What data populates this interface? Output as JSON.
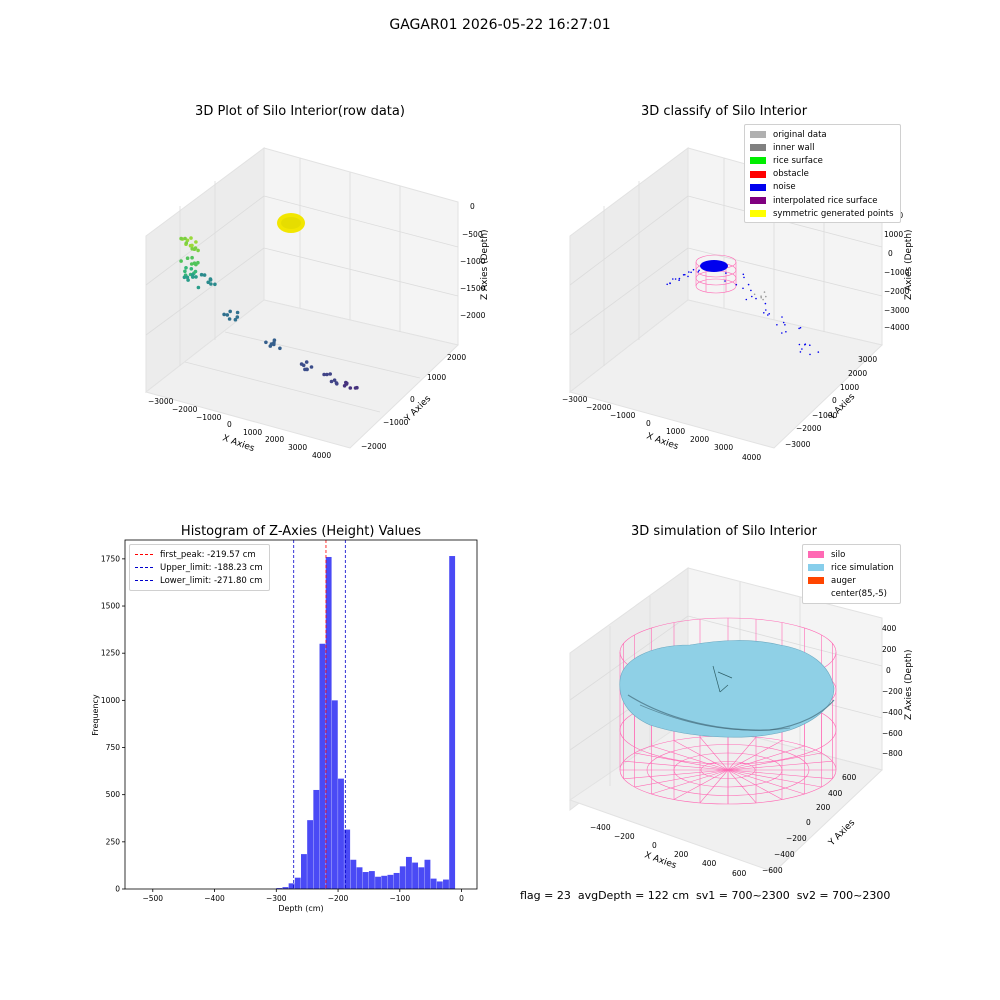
{
  "figure": {
    "suptitle": "GAGAR01 2026-05-22 16:27:01",
    "footer": "flag = 23  avgDepth = 122 cm  sv1 = 700~2300  sv2 = 700~2300"
  },
  "chart_data": [
    {
      "type": "scatter",
      "title": "3D Plot of Silo Interior(row data)",
      "xlabel": "X Axies",
      "ylabel": "Y Axies",
      "zlabel": "Z Axies (Depth)",
      "x_ticks": [
        "−3000",
        "−2000",
        "−1000",
        "0",
        "1000",
        "2000",
        "3000",
        "4000"
      ],
      "y_ticks": [
        "−2000",
        "−1000",
        "0",
        "1000",
        "2000"
      ],
      "z_ticks": [
        "0",
        "−500",
        "−1000",
        "−1500",
        "−2000"
      ],
      "points": [
        {
          "x": -300,
          "y": 1500,
          "z": -150
        },
        {
          "x": -450,
          "y": 1300,
          "z": -250
        },
        {
          "x": -800,
          "y": 800,
          "z": -600
        },
        {
          "x": -1100,
          "y": 300,
          "z": -900
        },
        {
          "x": -1300,
          "y": 0,
          "z": -1100
        },
        {
          "x": 200,
          "y": 1400,
          "z": -700
        },
        {
          "x": 700,
          "y": 900,
          "z": -1300
        },
        {
          "x": 1600,
          "y": 200,
          "z": -1700
        },
        {
          "x": 2300,
          "y": -300,
          "z": -2000
        },
        {
          "x": 2800,
          "y": -800,
          "z": -2100
        },
        {
          "x": 3200,
          "y": -1200,
          "z": -2200
        }
      ]
    },
    {
      "type": "scatter",
      "title": "3D classify of Silo Interior",
      "xlabel": "X Axies",
      "ylabel": "Y Axies",
      "zlabel": "Z Axies (Depth)",
      "x_ticks": [
        "−3000",
        "−2000",
        "−1000",
        "0",
        "1000",
        "2000",
        "3000",
        "4000"
      ],
      "y_ticks": [
        "−3000",
        "−2000",
        "−1000",
        "0",
        "1000",
        "2000",
        "3000"
      ],
      "z_ticks": [
        "2000",
        "1000",
        "0",
        "−1000",
        "−2000",
        "−3000",
        "−4000"
      ],
      "legend": [
        {
          "label": "original data",
          "color": "#b0b0b0"
        },
        {
          "label": "inner wall",
          "color": "#808080"
        },
        {
          "label": "rice surface",
          "color": "#00ee00"
        },
        {
          "label": "obstacle",
          "color": "#ff0000"
        },
        {
          "label": "noise",
          "color": "#0000ee"
        },
        {
          "label": "interpolated rice surface",
          "color": "#800080"
        },
        {
          "label": "symmetric generated points",
          "color": "#ffff00"
        }
      ]
    },
    {
      "type": "bar",
      "title": "Histogram of Z-Axies (Height) Values",
      "xlabel": "Depth (cm)",
      "ylabel": "Frequency",
      "xlim": [
        -545,
        25
      ],
      "ylim": [
        0,
        1850
      ],
      "x_ticks": [
        -500,
        -400,
        -300,
        -200,
        -100,
        0
      ],
      "x_tick_labels": [
        "−500",
        "−400",
        "−300",
        "−200",
        "−100",
        "0"
      ],
      "y_ticks": [
        0,
        250,
        500,
        750,
        1000,
        1250,
        1500,
        1750
      ],
      "bin_width": 10,
      "bins": [
        {
          "x": -300,
          "value": 5
        },
        {
          "x": -290,
          "value": 10
        },
        {
          "x": -280,
          "value": 30
        },
        {
          "x": -270,
          "value": 60
        },
        {
          "x": -260,
          "value": 185
        },
        {
          "x": -250,
          "value": 365
        },
        {
          "x": -240,
          "value": 525
        },
        {
          "x": -230,
          "value": 1300
        },
        {
          "x": -220,
          "value": 1760
        },
        {
          "x": -210,
          "value": 1000
        },
        {
          "x": -200,
          "value": 585
        },
        {
          "x": -190,
          "value": 315
        },
        {
          "x": -180,
          "value": 155
        },
        {
          "x": -170,
          "value": 115
        },
        {
          "x": -160,
          "value": 90
        },
        {
          "x": -150,
          "value": 95
        },
        {
          "x": -140,
          "value": 65
        },
        {
          "x": -130,
          "value": 70
        },
        {
          "x": -120,
          "value": 75
        },
        {
          "x": -110,
          "value": 85
        },
        {
          "x": -100,
          "value": 120
        },
        {
          "x": -90,
          "value": 170
        },
        {
          "x": -80,
          "value": 140
        },
        {
          "x": -70,
          "value": 115
        },
        {
          "x": -60,
          "value": 155
        },
        {
          "x": -50,
          "value": 55
        },
        {
          "x": -40,
          "value": 40
        },
        {
          "x": -30,
          "value": 50
        },
        {
          "x": -20,
          "value": 1765
        }
      ],
      "bar_color": "#4a4af5",
      "vlines": [
        {
          "x": -219.57,
          "color": "#ff0000",
          "label": "first_peak: -219.57 cm"
        },
        {
          "x": -188.23,
          "color": "#0000cc",
          "label": "Upper_limit: -188.23 cm"
        },
        {
          "x": -271.8,
          "color": "#0000cc",
          "label": "Lower_limit: -271.80 cm"
        }
      ],
      "legend_position": "upper-left"
    },
    {
      "type": "area",
      "title": "3D simulation of Silo Interior",
      "xlabel": "X Axies",
      "ylabel": "Y Axies",
      "zlabel": "Z Axies (Depth)",
      "x_ticks": [
        "−400",
        "−200",
        "0",
        "200",
        "400",
        "600"
      ],
      "y_ticks": [
        "600",
        "400",
        "200",
        "0",
        "−200",
        "−400",
        "−600"
      ],
      "z_ticks": [
        "400",
        "200",
        "0",
        "−200",
        "−400",
        "−600",
        "−800"
      ],
      "legend": [
        {
          "label": "silo",
          "color": "#ff69b4"
        },
        {
          "label": "rice simulation",
          "color": "#87ceeb"
        },
        {
          "label": "auger",
          "color": "#ff4500"
        },
        {
          "label": "center(85,-5)",
          "color": "#ffffff"
        }
      ]
    }
  ]
}
